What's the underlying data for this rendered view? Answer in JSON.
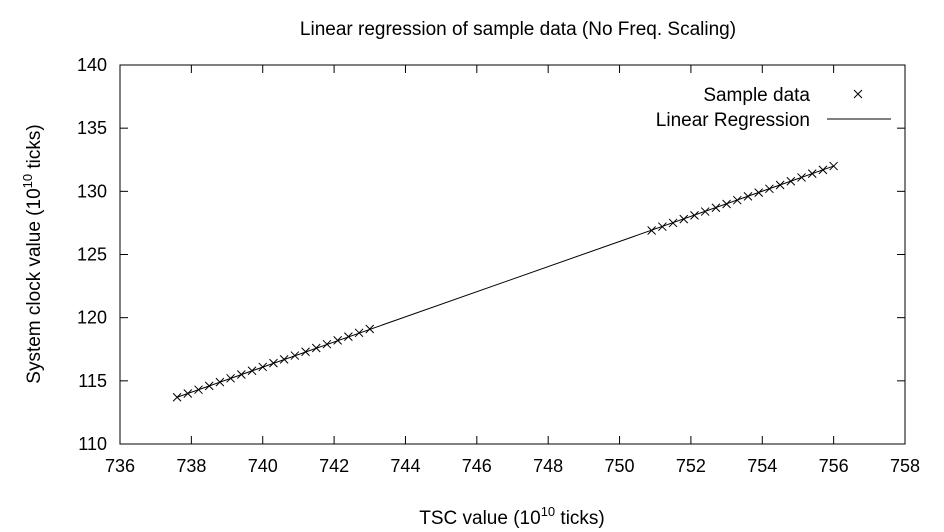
{
  "chart_data": {
    "type": "scatter",
    "title": "Linear regression of sample data (No Freq. Scaling)",
    "xlabel": {
      "prefix": "TSC value (10",
      "exp": "10",
      "suffix": " ticks)"
    },
    "ylabel": {
      "prefix": "System clock value (10",
      "exp": "10",
      "suffix": " ticks)"
    },
    "xlim": [
      736,
      758
    ],
    "ylim": [
      110,
      140
    ],
    "xticks": [
      736,
      738,
      740,
      742,
      744,
      746,
      748,
      750,
      752,
      754,
      756,
      758
    ],
    "yticks": [
      110,
      115,
      120,
      125,
      130,
      135,
      140
    ],
    "grid": false,
    "legend_position": "top-right",
    "series": [
      {
        "name": "Sample data",
        "marker": "x",
        "points": [
          [
            737.6,
            113.7
          ],
          [
            737.9,
            114.0
          ],
          [
            738.2,
            114.3
          ],
          [
            738.5,
            114.6
          ],
          [
            738.8,
            114.9
          ],
          [
            739.1,
            115.2
          ],
          [
            739.4,
            115.5
          ],
          [
            739.7,
            115.8
          ],
          [
            740.0,
            116.1
          ],
          [
            740.3,
            116.4
          ],
          [
            740.6,
            116.7
          ],
          [
            740.9,
            117.0
          ],
          [
            741.2,
            117.3
          ],
          [
            741.5,
            117.6
          ],
          [
            741.8,
            117.9
          ],
          [
            742.1,
            118.2
          ],
          [
            742.4,
            118.5
          ],
          [
            742.7,
            118.8
          ],
          [
            743.0,
            119.1
          ],
          [
            750.9,
            126.9
          ],
          [
            751.2,
            127.2
          ],
          [
            751.5,
            127.5
          ],
          [
            751.8,
            127.8
          ],
          [
            752.1,
            128.1
          ],
          [
            752.4,
            128.4
          ],
          [
            752.7,
            128.7
          ],
          [
            753.0,
            129.0
          ],
          [
            753.3,
            129.3
          ],
          [
            753.6,
            129.6
          ],
          [
            753.9,
            129.9
          ],
          [
            754.2,
            130.2
          ],
          [
            754.5,
            130.5
          ],
          [
            754.8,
            130.8
          ],
          [
            755.1,
            131.1
          ],
          [
            755.4,
            131.4
          ],
          [
            755.7,
            131.7
          ],
          [
            756.0,
            132.0
          ]
        ]
      },
      {
        "name": "Linear Regression",
        "marker": "line",
        "points": [
          [
            737.6,
            113.7
          ],
          [
            756.0,
            132.0
          ]
        ]
      }
    ]
  },
  "colors": {
    "axis": "#000000",
    "series": "#000000",
    "background": "#ffffff"
  }
}
